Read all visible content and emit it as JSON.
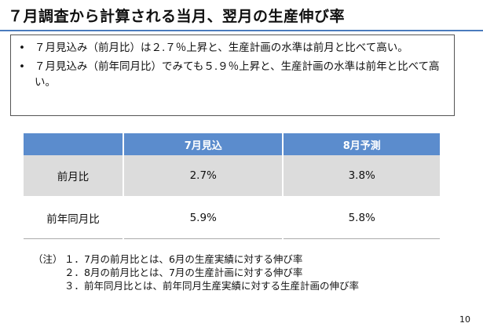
{
  "title": "７月調査から計算される当月、翌月の生産伸び率",
  "summary": {
    "bullet_symbol": "•",
    "bullets": [
      "７月見込み（前月比）は２.７％上昇と、生産計画の水準は前月と比べて高い。",
      "７月見込み（前年同月比）でみても５.９％上昇と、生産計画の水準は前年と比べて高い。"
    ]
  },
  "table": {
    "headers": [
      "",
      "7月見込",
      "8月予測"
    ],
    "rows": [
      {
        "label": "前月比",
        "values": [
          "2.7%",
          "3.8%"
        ]
      },
      {
        "label": "前年同月比",
        "values": [
          "5.9%",
          "5.8%"
        ]
      }
    ]
  },
  "notes": {
    "prefix": "（注）",
    "items": [
      "１．7月の前月比とは、6月の生産実績に対する伸び率",
      "２．8月の前月比とは、7月の生産計画に対する伸び率",
      "３．前年同月比とは、前年同月生産実績に対する生産計画の伸び率"
    ]
  },
  "page_number": "10",
  "colors": {
    "accent": "#4a7bbd",
    "header_bg": "#5b8ccd",
    "row_shade": "#dcdcdc"
  }
}
